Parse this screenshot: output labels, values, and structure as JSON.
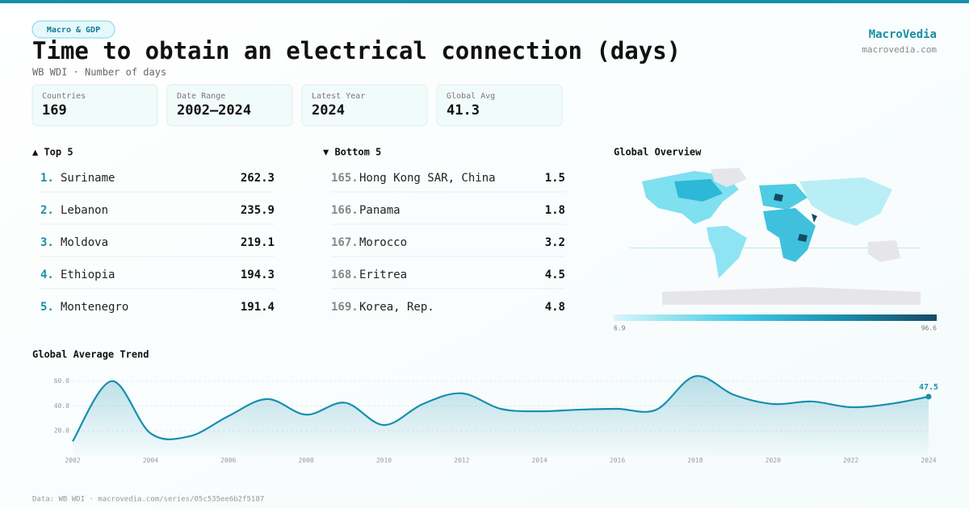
{
  "header": {
    "badge": "Macro & GDP",
    "title": "Time to obtain an electrical connection (days)",
    "subtitle": "WB WDI · Number of days",
    "brand": "MacroVedia",
    "site": "macrovedia.com"
  },
  "stats": [
    {
      "label": "Countries",
      "value": "169"
    },
    {
      "label": "Date Range",
      "value": "2002–2024"
    },
    {
      "label": "Latest Year",
      "value": "2024"
    },
    {
      "label": "Global Avg",
      "value": "41.3"
    }
  ],
  "top": {
    "heading": "▲ Top 5",
    "rows": [
      {
        "rank": "1.",
        "name": "Suriname",
        "value": "262.3"
      },
      {
        "rank": "2.",
        "name": "Lebanon",
        "value": "235.9"
      },
      {
        "rank": "3.",
        "name": "Moldova",
        "value": "219.1"
      },
      {
        "rank": "4.",
        "name": "Ethiopia",
        "value": "194.3"
      },
      {
        "rank": "5.",
        "name": "Montenegro",
        "value": "191.4"
      }
    ]
  },
  "bottom": {
    "heading": "▼ Bottom 5",
    "rows": [
      {
        "rank": "165.",
        "name": "Hong Kong SAR, China",
        "value": "1.5"
      },
      {
        "rank": "166.",
        "name": "Panama",
        "value": "1.8"
      },
      {
        "rank": "167.",
        "name": "Morocco",
        "value": "3.2"
      },
      {
        "rank": "168.",
        "name": "Eritrea",
        "value": "4.5"
      },
      {
        "rank": "169.",
        "name": "Korea, Rep.",
        "value": "4.8"
      }
    ]
  },
  "map": {
    "heading": "Global Overview",
    "scale_min": 6.9,
    "scale_max": 96.6
  },
  "chart_data": {
    "type": "line",
    "title": "Global Average Trend",
    "x": [
      2002,
      2003,
      2004,
      2005,
      2006,
      2007,
      2008,
      2009,
      2010,
      2011,
      2012,
      2013,
      2014,
      2015,
      2016,
      2017,
      2018,
      2019,
      2020,
      2021,
      2022,
      2023,
      2024
    ],
    "values": [
      11.5,
      60,
      18,
      15.5,
      31.8,
      45.6,
      33,
      42.6,
      24.6,
      41.6,
      50.2,
      37.7,
      35.7,
      37,
      37.7,
      37,
      64,
      48.9,
      41.6,
      43.6,
      39,
      41.6,
      47.5
    ],
    "color": "#168fb0",
    "xlim": [
      2002,
      2024
    ],
    "xticks": [
      2002,
      2004,
      2006,
      2008,
      2010,
      2012,
      2014,
      2016,
      2018,
      2020,
      2022,
      2024
    ],
    "ylim": [
      0,
      65
    ],
    "yticks": [
      {
        "value": 20,
        "label": "20.0"
      },
      {
        "value": 40,
        "label": "40.0"
      },
      {
        "value": 60,
        "label": "60.0"
      }
    ],
    "grid": true
  },
  "footer": "Data: WB WDI · macrovedia.com/series/05c535ee6b2f5187"
}
